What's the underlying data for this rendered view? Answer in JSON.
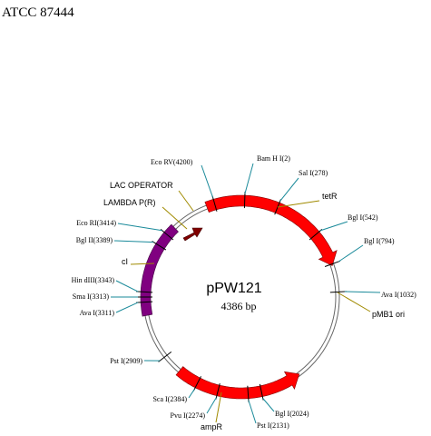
{
  "title": "ATCC 87444",
  "plasmid": {
    "name": "pPW121",
    "size": "4386 bp"
  },
  "sites": [
    "Eco  RV(4200)",
    "Bam H I(2)",
    "Sal  I(278)",
    "Bgl  I(542)",
    "Bgl  I(794)",
    "Ava  I(1032)",
    "Bgl  I(2024)",
    "Pst  I(2131)",
    "Pvu  I(2274)",
    "Sca   I(2384)",
    "Pst  I(2909)",
    "Ava  I(3311)",
    "Sma  I(3313)",
    "Hin dIII(3343)",
    "Bgl  II(3389)",
    "Eco  RI(3414)"
  ],
  "features": [
    "LAC OPERATOR",
    "LAMBDA P(R)",
    "cI",
    "tetR",
    "pMB1 ori",
    "ampR"
  ]
}
